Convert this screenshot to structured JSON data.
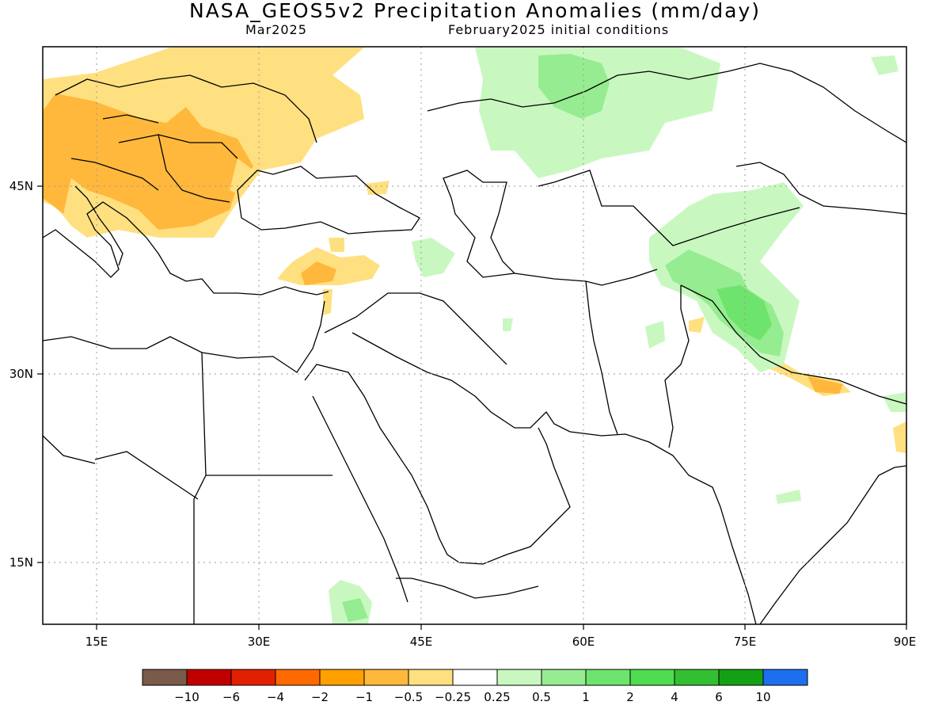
{
  "title": "NASA_GEOS5v2 Precipitation Anomalies (mm/day)",
  "subtitle_left": "Mar2025",
  "subtitle_right": "February2025 initial conditions",
  "map": {
    "lon_range": [
      10,
      90
    ],
    "lat_range": [
      10,
      56
    ],
    "x_ticks": [
      "15E",
      "30E",
      "45E",
      "60E",
      "75E",
      "90E"
    ],
    "y_ticks": [
      "45N",
      "30N",
      "15N"
    ],
    "grid": true
  },
  "colorbar": {
    "colors": [
      "#7a5a4a",
      "#c00000",
      "#e02000",
      "#ff6a00",
      "#ffa000",
      "#ffb83c",
      "#ffe080",
      "#ffffff",
      "#c8f8c0",
      "#96ec90",
      "#6ee46e",
      "#50dc50",
      "#32c032",
      "#14a014",
      "#1e6ef0"
    ],
    "labels": [
      "-10",
      "-6",
      "-4",
      "-2",
      "-1",
      "-0.5",
      "-0.25",
      "0.25",
      "0.5",
      "1",
      "2",
      "4",
      "6",
      "10"
    ]
  }
}
